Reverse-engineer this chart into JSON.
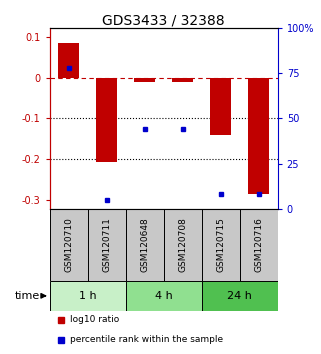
{
  "title": "GDS3433 / 32388",
  "samples": [
    "GSM120710",
    "GSM120711",
    "GSM120648",
    "GSM120708",
    "GSM120715",
    "GSM120716"
  ],
  "log10_ratio": [
    0.085,
    -0.205,
    -0.01,
    -0.01,
    -0.14,
    -0.285
  ],
  "percentile_rank": [
    78,
    5,
    44,
    44,
    8,
    8
  ],
  "groups": [
    {
      "label": "1 h",
      "indices": [
        0,
        1
      ],
      "color": "#c8f0c8"
    },
    {
      "label": "4 h",
      "indices": [
        2,
        3
      ],
      "color": "#90e090"
    },
    {
      "label": "24 h",
      "indices": [
        4,
        5
      ],
      "color": "#50c050"
    }
  ],
  "bar_color": "#c00000",
  "dot_color": "#0000cc",
  "ylim_left": [
    -0.32,
    0.12
  ],
  "ylim_right": [
    0,
    100
  ],
  "yticks_left": [
    0.1,
    0.0,
    -0.1,
    -0.2,
    -0.3
  ],
  "yticks_right": [
    100,
    75,
    50,
    25,
    0
  ],
  "hline_y": 0.0,
  "dotted_lines": [
    -0.1,
    -0.2
  ],
  "bar_width": 0.55,
  "label_fontsize": 6.5,
  "tick_fontsize": 7,
  "title_fontsize": 10,
  "group_label_fontsize": 8,
  "legend_fontsize": 6.5,
  "time_label": "time",
  "sample_box_color": "#c8c8c8",
  "background_color": "#ffffff"
}
